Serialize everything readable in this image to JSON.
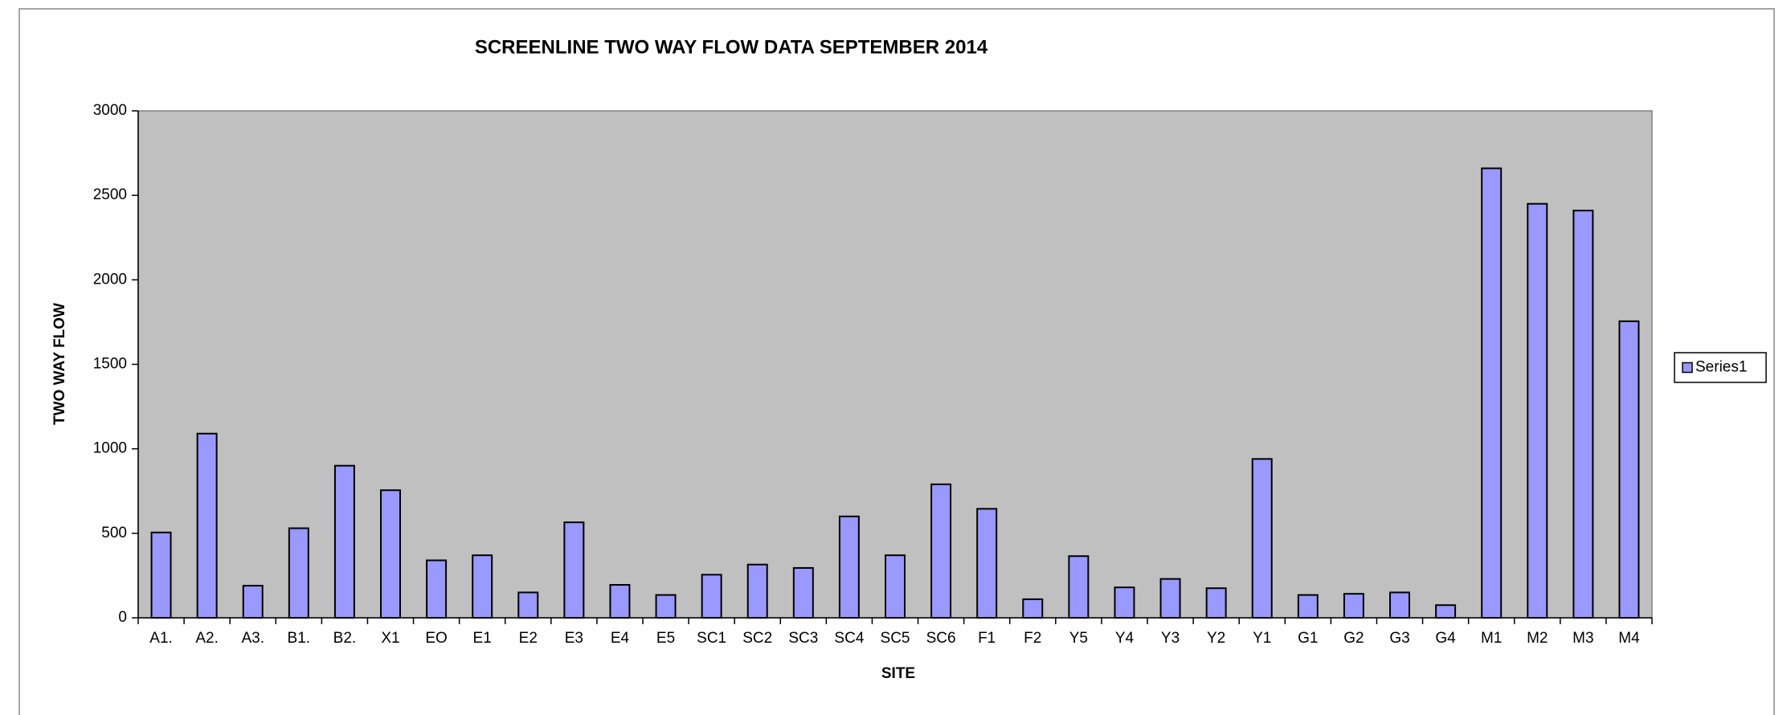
{
  "chart_data": {
    "type": "bar",
    "title": "SCREENLINE TWO WAY FLOW DATA SEPTEMBER 2014",
    "x_label": "SITE",
    "y_label": "TWO WAY FLOW",
    "categories": [
      "A1.",
      "A2.",
      "A3.",
      "B1.",
      "B2.",
      "X1",
      "EO",
      "E1",
      "E2",
      "E3",
      "E4",
      "E5",
      "SC1",
      "SC2",
      "SC3",
      "SC4",
      "SC5",
      "SC6",
      "F1",
      "F2",
      "Y5",
      "Y4",
      "Y3",
      "Y2",
      "Y1",
      "G1",
      "G2",
      "G3",
      "G4",
      "M1",
      "M2",
      "M3",
      "M4"
    ],
    "series": [
      {
        "name": "Series1",
        "color": "#9999ff",
        "values": [
          505,
          1090,
          190,
          530,
          900,
          755,
          340,
          370,
          150,
          565,
          195,
          135,
          255,
          315,
          295,
          600,
          370,
          790,
          645,
          110,
          365,
          180,
          230,
          175,
          940,
          135,
          142,
          150,
          75,
          2660,
          2450,
          2410,
          1755
        ]
      }
    ],
    "ylim": [
      0,
      3000
    ],
    "yticks": [
      0,
      500,
      1000,
      1500,
      2000,
      2500,
      3000
    ],
    "plot_background": "#c0c0c0",
    "legend": "right"
  }
}
